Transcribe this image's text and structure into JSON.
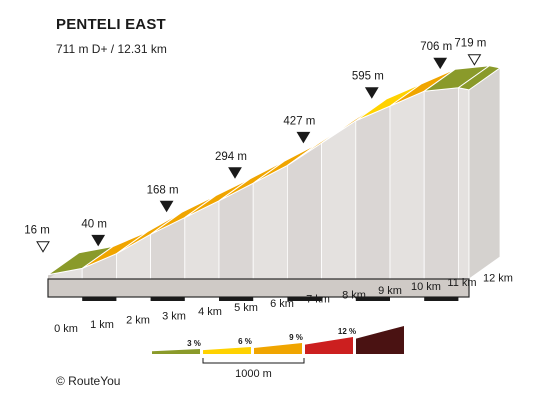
{
  "title": "PENTELI EAST",
  "subtitle": "711 m D+ / 12.31 km",
  "footer": "© RouteYou",
  "chart_data": {
    "type": "area",
    "title": "PENTELI EAST",
    "subtitle": "711 m D+ / 12.31 km",
    "xlabel": "",
    "ylabel": "",
    "distance_total_km": 12.31,
    "x_ticks": [
      "0 km",
      "1 km",
      "2 km",
      "3 km",
      "4 km",
      "5 km",
      "6 km",
      "7 km",
      "8 km",
      "9 km",
      "10 km",
      "11 km",
      "12 km"
    ],
    "profile": [
      {
        "km": 0,
        "elev": 16
      },
      {
        "km": 1,
        "elev": 40
      },
      {
        "km": 2,
        "elev": 95
      },
      {
        "km": 3,
        "elev": 168
      },
      {
        "km": 4,
        "elev": 231
      },
      {
        "km": 5,
        "elev": 294
      },
      {
        "km": 6,
        "elev": 360
      },
      {
        "km": 7,
        "elev": 427
      },
      {
        "km": 8,
        "elev": 511
      },
      {
        "km": 9,
        "elev": 595
      },
      {
        "km": 10,
        "elev": 650
      },
      {
        "km": 11,
        "elev": 706
      },
      {
        "km": 12,
        "elev": 719
      },
      {
        "km": 12.31,
        "elev": 711
      }
    ],
    "segment_colors": [
      "#8a9a2a",
      "#f0a500",
      "#f0a500",
      "#f0a500",
      "#f0a500",
      "#f0a500",
      "#f0a500",
      "#f0a500",
      "#f0a500",
      "#ffd200",
      "#f0a500",
      "#8a9a2a",
      "#8a9a2a"
    ],
    "markers": [
      {
        "km": 0,
        "label": "16 m",
        "style": "open"
      },
      {
        "km": 1,
        "label": "40 m",
        "style": "filled"
      },
      {
        "km": 3,
        "label": "168 m",
        "style": "filled"
      },
      {
        "km": 5,
        "label": "294 m",
        "style": "filled"
      },
      {
        "km": 7,
        "label": "427 m",
        "style": "filled"
      },
      {
        "km": 9,
        "label": "595 m",
        "style": "filled"
      },
      {
        "km": 11,
        "label": "706 m",
        "style": "filled"
      },
      {
        "km": 12,
        "label": "719 m",
        "style": "open"
      }
    ],
    "legend": {
      "grades": [
        {
          "label": "3 %",
          "color": "#8a9a2a"
        },
        {
          "label": "6 %",
          "color": "#ffd200"
        },
        {
          "label": "9 %",
          "color": "#f0a500"
        },
        {
          "label": "12 %",
          "color": "#cc1f1f"
        },
        {
          "label": "",
          "color": "#4a1212"
        }
      ],
      "scale_label": "1000 m"
    }
  }
}
